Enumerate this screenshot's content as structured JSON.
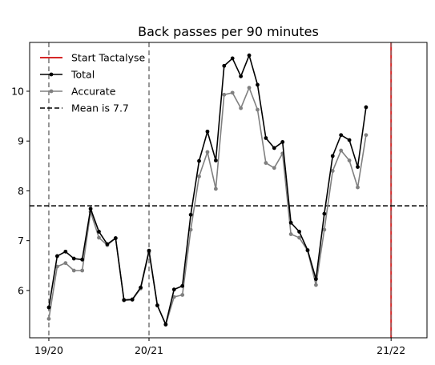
{
  "chart_data": {
    "type": "line",
    "title": "Back passes per 90 minutes",
    "xlabel": "",
    "ylabel": "",
    "xlim": [
      -2.3,
      45.3
    ],
    "ylim": [
      5.05,
      10.98
    ],
    "grid": false,
    "legend_position": "top-left",
    "x_ticks": [
      {
        "x": 0,
        "label": "19/20"
      },
      {
        "x": 12,
        "label": "20/21"
      },
      {
        "x": 41,
        "label": "21/22"
      }
    ],
    "y_ticks": [
      {
        "y": 6,
        "label": "6"
      },
      {
        "y": 7,
        "label": "7"
      },
      {
        "y": 8,
        "label": "8"
      },
      {
        "y": 9,
        "label": "9"
      },
      {
        "y": 10,
        "label": "10"
      }
    ],
    "season_lines": [
      0,
      12
    ],
    "start_line": {
      "x": 41,
      "label": "Start Tactalyse",
      "color": "#d62728"
    },
    "mean": {
      "value": 7.7,
      "label": "Mean is 7.7"
    },
    "series": [
      {
        "name": "Total",
        "color": "#000000",
        "values": [
          5.66,
          6.69,
          6.78,
          6.64,
          6.62,
          7.64,
          7.18,
          6.93,
          7.05,
          5.81,
          5.82,
          6.06,
          6.8,
          5.7,
          5.32,
          6.02,
          6.09,
          7.52,
          8.6,
          9.19,
          8.61,
          10.51,
          10.66,
          10.3,
          10.72,
          10.13,
          9.06,
          8.86,
          8.98,
          7.36,
          7.18,
          6.81,
          6.23,
          7.54,
          8.7,
          9.12,
          9.02,
          8.48,
          9.68
        ]
      },
      {
        "name": "Accurate",
        "color": "#808080",
        "values": [
          5.43,
          6.48,
          6.55,
          6.4,
          6.4,
          7.58,
          7.06,
          6.91,
          7.05,
          5.8,
          5.81,
          6.04,
          6.77,
          5.7,
          5.31,
          5.87,
          5.91,
          7.22,
          8.29,
          8.78,
          8.04,
          9.93,
          9.97,
          9.66,
          10.07,
          9.63,
          8.56,
          8.46,
          8.75,
          7.13,
          7.06,
          6.8,
          6.11,
          7.22,
          8.4,
          8.81,
          8.61,
          8.07,
          9.12
        ]
      }
    ]
  }
}
